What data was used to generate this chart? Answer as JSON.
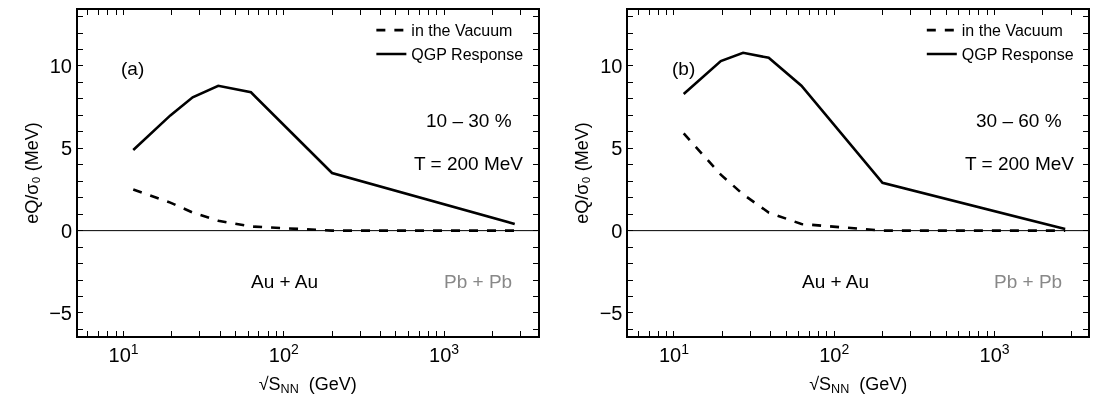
{
  "chart_data": [
    {
      "type": "line",
      "x": [
        11.5,
        19.6,
        27,
        39,
        62.4,
        200,
        2760
      ],
      "xlim": [
        5.2,
        3830
      ],
      "ylim": [
        -6.4,
        13.4
      ],
      "log": "x",
      "legend": "top right",
      "xlabel": "√S$_{NN}$  (GeV)",
      "ylabel": "eQ/σ₀ (MeV)",
      "xticks": [
        {
          "value": 6,
          "label": null
        },
        {
          "value": 7,
          "label": null
        },
        {
          "value": 8,
          "label": null
        },
        {
          "value": 9,
          "label": null
        },
        {
          "value": 10,
          "label": "10$^{1}$"
        },
        {
          "value": 20,
          "label": null
        },
        {
          "value": 30,
          "label": null
        },
        {
          "value": 40,
          "label": null
        },
        {
          "value": 50,
          "label": null
        },
        {
          "value": 60,
          "label": null
        },
        {
          "value": 70,
          "label": null
        },
        {
          "value": 80,
          "label": null
        },
        {
          "value": 90,
          "label": null
        },
        {
          "value": 100,
          "label": "10$^{2}$"
        },
        {
          "value": 200,
          "label": null
        },
        {
          "value": 300,
          "label": null
        },
        {
          "value": 400,
          "label": null
        },
        {
          "value": 500,
          "label": null
        },
        {
          "value": 600,
          "label": null
        },
        {
          "value": 700,
          "label": null
        },
        {
          "value": 800,
          "label": null
        },
        {
          "value": 900,
          "label": null
        },
        {
          "value": 1000,
          "label": "10$^{3}$"
        },
        {
          "value": 2000,
          "label": null
        },
        {
          "value": 3000,
          "label": null
        }
      ],
      "yticks": [
        {
          "value": -6,
          "label": null
        },
        -5,
        {
          "value": -4,
          "label": null
        },
        {
          "value": -3,
          "label": null
        },
        {
          "value": -2,
          "label": null
        },
        {
          "value": -1,
          "label": null
        },
        0,
        {
          "value": 1,
          "label": null
        },
        {
          "value": 2,
          "label": null
        },
        {
          "value": 3,
          "label": null
        },
        {
          "value": 4,
          "label": null
        },
        5,
        {
          "value": 6,
          "label": null
        },
        {
          "value": 7,
          "label": null
        },
        {
          "value": 8,
          "label": null
        },
        {
          "value": 9,
          "label": null
        },
        10,
        {
          "value": 11,
          "label": null
        },
        {
          "value": 12,
          "label": null
        },
        {
          "value": 13,
          "label": null
        }
      ],
      "ref_lines": [
        {
          "axis": "y",
          "value": 0,
          "label": null,
          "color": "#000000"
        }
      ],
      "annotations": [
        "(a)",
        "10 – 30 %",
        "T = 200 MeV",
        "Au + Au",
        "Pb + Pb"
      ],
      "series": [
        {
          "name": "in the Vacuum",
          "color": "#000000",
          "line_style": "dashed",
          "values": [
            2.5,
            1.7,
            1.1,
            0.6,
            0.25,
            0.0,
            0.0
          ]
        },
        {
          "name": "QGP Response",
          "color": "#000000",
          "line_style": "solid",
          "values": [
            4.9,
            7.0,
            8.1,
            8.8,
            8.4,
            3.5,
            0.4
          ]
        }
      ]
    },
    {
      "type": "line",
      "x": [
        11.5,
        19.6,
        27,
        39,
        62.4,
        200,
        2760
      ],
      "xlim": [
        5.2,
        3830
      ],
      "ylim": [
        -6.4,
        13.4
      ],
      "log": "x",
      "legend": "top right",
      "xlabel": "√S$_{NN}$  (GeV)",
      "ylabel": "eQ/σ₀ (MeV)",
      "xticks": [
        {
          "value": 6,
          "label": null
        },
        {
          "value": 7,
          "label": null
        },
        {
          "value": 8,
          "label": null
        },
        {
          "value": 9,
          "label": null
        },
        {
          "value": 10,
          "label": "10$^{1}$"
        },
        {
          "value": 20,
          "label": null
        },
        {
          "value": 30,
          "label": null
        },
        {
          "value": 40,
          "label": null
        },
        {
          "value": 50,
          "label": null
        },
        {
          "value": 60,
          "label": null
        },
        {
          "value": 70,
          "label": null
        },
        {
          "value": 80,
          "label": null
        },
        {
          "value": 90,
          "label": null
        },
        {
          "value": 100,
          "label": "10$^{2}$"
        },
        {
          "value": 200,
          "label": null
        },
        {
          "value": 300,
          "label": null
        },
        {
          "value": 400,
          "label": null
        },
        {
          "value": 500,
          "label": null
        },
        {
          "value": 600,
          "label": null
        },
        {
          "value": 700,
          "label": null
        },
        {
          "value": 800,
          "label": null
        },
        {
          "value": 900,
          "label": null
        },
        {
          "value": 1000,
          "label": "10$^{3}$"
        },
        {
          "value": 2000,
          "label": null
        },
        {
          "value": 3000,
          "label": null
        }
      ],
      "yticks": [
        {
          "value": -6,
          "label": null
        },
        -5,
        {
          "value": -4,
          "label": null
        },
        {
          "value": -3,
          "label": null
        },
        {
          "value": -2,
          "label": null
        },
        {
          "value": -1,
          "label": null
        },
        0,
        {
          "value": 1,
          "label": null
        },
        {
          "value": 2,
          "label": null
        },
        {
          "value": 3,
          "label": null
        },
        {
          "value": 4,
          "label": null
        },
        5,
        {
          "value": 6,
          "label": null
        },
        {
          "value": 7,
          "label": null
        },
        {
          "value": 8,
          "label": null
        },
        {
          "value": 9,
          "label": null
        },
        10,
        {
          "value": 11,
          "label": null
        },
        {
          "value": 12,
          "label": null
        },
        {
          "value": 13,
          "label": null
        }
      ],
      "ref_lines": [
        {
          "axis": "y",
          "value": 0,
          "label": null,
          "color": "#000000"
        }
      ],
      "annotations": [
        "(b)",
        "30 – 60 %",
        "T = 200 MeV",
        "Au + Au",
        "Pb + Pb"
      ],
      "series": [
        {
          "name": "in the Vacuum",
          "color": "#000000",
          "line_style": "dashed",
          "values": [
            5.9,
            3.4,
            2.2,
            1.1,
            0.4,
            0.0,
            0.0
          ]
        },
        {
          "name": "QGP Response",
          "color": "#000000",
          "line_style": "solid",
          "values": [
            8.3,
            10.3,
            10.8,
            10.5,
            8.8,
            2.9,
            0.1
          ]
        }
      ]
    }
  ]
}
